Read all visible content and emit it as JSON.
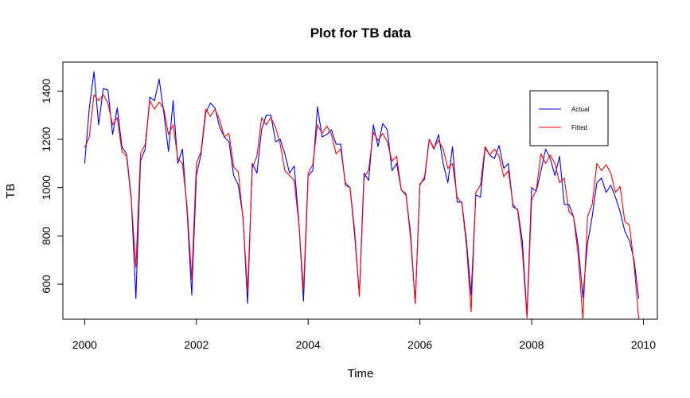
{
  "chart_data": {
    "type": "line",
    "title": "Plot for TB data",
    "xlabel": "Time",
    "ylabel": "TB",
    "xlim": [
      1999.61,
      2010.25
    ],
    "ylim": [
      455,
      1520
    ],
    "x_ticks": [
      2000,
      2002,
      2004,
      2006,
      2008,
      2010
    ],
    "y_ticks": [
      600,
      800,
      1000,
      1200,
      1400
    ],
    "legend_position": "top-right",
    "x_start": 2000,
    "x_step_months": 1,
    "series": [
      {
        "name": "Actual",
        "color": "#0000ff",
        "values": [
          1100,
          1330,
          1480,
          1260,
          1410,
          1405,
          1220,
          1330,
          1170,
          1140,
          960,
          540,
          1110,
          1160,
          1375,
          1360,
          1450,
          1310,
          1150,
          1360,
          1100,
          1160,
          900,
          555,
          1050,
          1140,
          1310,
          1350,
          1330,
          1250,
          1210,
          1190,
          1050,
          1010,
          880,
          520,
          1100,
          1060,
          1240,
          1300,
          1300,
          1190,
          1200,
          1140,
          1060,
          1090,
          860,
          530,
          1050,
          1070,
          1335,
          1210,
          1220,
          1240,
          1180,
          1180,
          1010,
          1000,
          800,
          555,
          1060,
          1030,
          1260,
          1170,
          1265,
          1240,
          1070,
          1100,
          990,
          970,
          810,
          520,
          1015,
          1035,
          1200,
          1160,
          1220,
          1100,
          1020,
          1170,
          940,
          940,
          780,
          555,
          970,
          960,
          1165,
          1135,
          1120,
          1175,
          1080,
          1100,
          920,
          910,
          780,
          470,
          1000,
          985,
          1070,
          1160,
          1120,
          1050,
          1130,
          930,
          930,
          880,
          760,
          545,
          770,
          880,
          1020,
          1040,
          980,
          1010,
          960,
          900,
          820,
          780,
          700,
          540
        ]
      },
      {
        "name": "Fitted",
        "color": "#ff0000",
        "values": [
          1165,
          1210,
          1385,
          1360,
          1385,
          1350,
          1260,
          1290,
          1150,
          1130,
          950,
          670,
          1140,
          1180,
          1360,
          1325,
          1355,
          1325,
          1220,
          1260,
          1120,
          1100,
          920,
          620,
          1100,
          1150,
          1325,
          1295,
          1325,
          1280,
          1210,
          1225,
          1085,
          1065,
          870,
          570,
          1080,
          1130,
          1290,
          1260,
          1290,
          1250,
          1180,
          1070,
          1050,
          1030,
          850,
          575,
          1060,
          1095,
          1260,
          1225,
          1255,
          1220,
          1140,
          1160,
          1020,
          1000,
          820,
          550,
          1040,
          1075,
          1230,
          1195,
          1225,
          1190,
          1110,
          1130,
          990,
          975,
          790,
          520,
          1010,
          1045,
          1200,
          1165,
          1195,
          1160,
          1080,
          1100,
          960,
          935,
          760,
          485,
          980,
          1010,
          1170,
          1135,
          1160,
          1130,
          1045,
          1070,
          930,
          905,
          740,
          460,
          950,
          990,
          1140,
          1100,
          1135,
          1100,
          1020,
          1040,
          900,
          880,
          720,
          455,
          880,
          930,
          1100,
          1070,
          1095,
          1060,
          980,
          1005,
          860,
          845,
          680,
          455
        ]
      }
    ]
  }
}
